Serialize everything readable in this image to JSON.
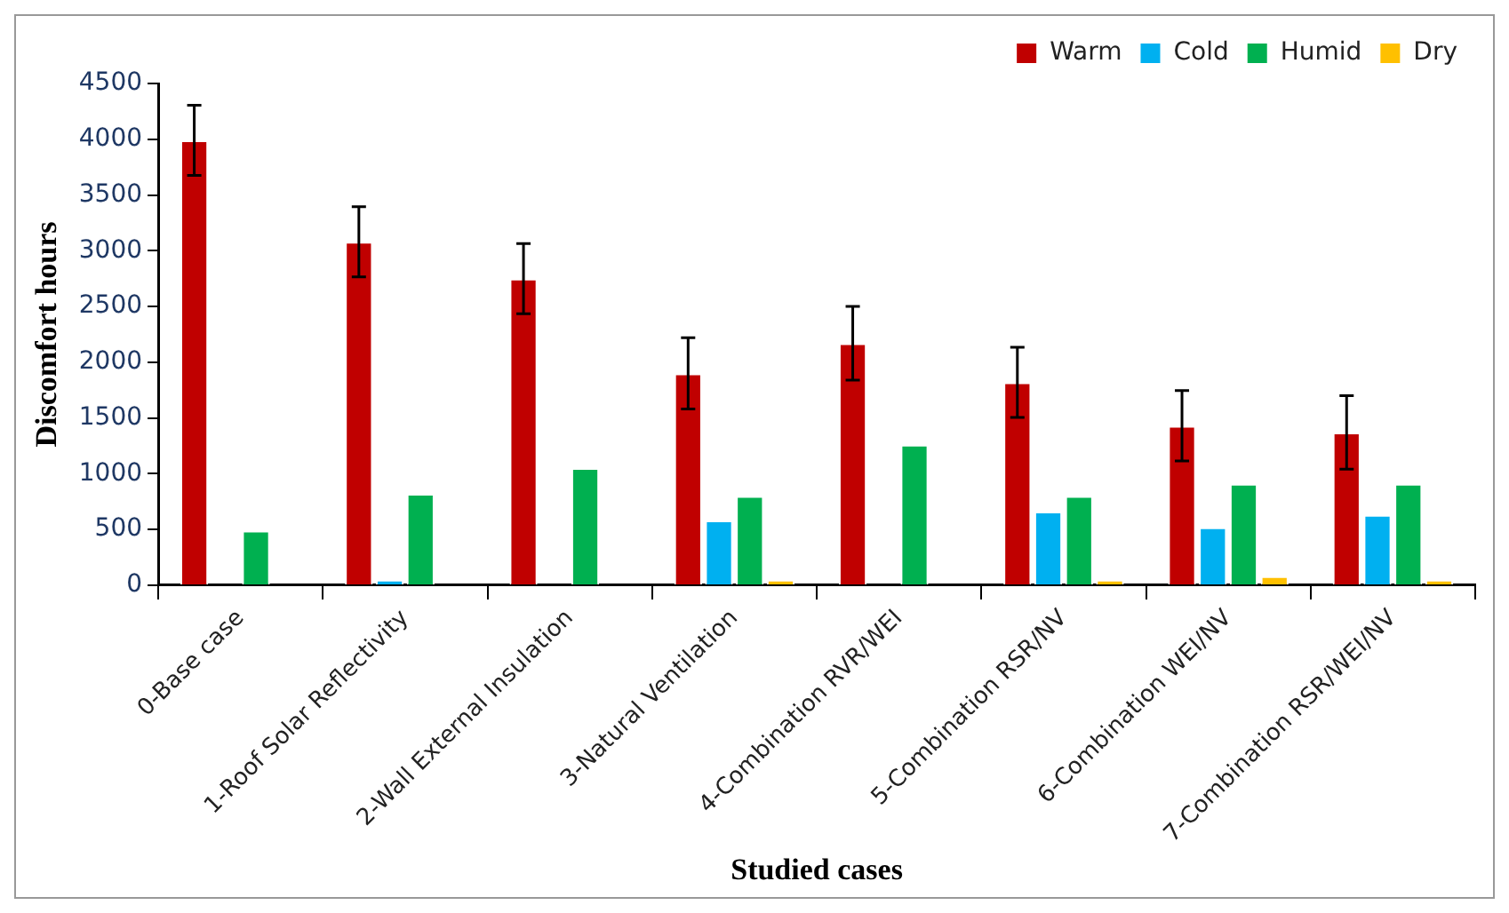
{
  "chart_data": {
    "type": "bar",
    "xlabel": "Studied cases",
    "ylabel": "Discomfort hours",
    "categories": [
      "0-Base case",
      "1-Roof Solar Reflectivity",
      "2-Wall External Insulation",
      "3-Natural Ventilation",
      "4-Combination RVR/WEI",
      "5-Combination RSR/NV",
      "6-Combination WEI/NV",
      "7-Combination RSR/WEI/NV"
    ],
    "series": [
      {
        "name": "Warm",
        "color": "#c00000",
        "values": [
          3990,
          3080,
          2750,
          1900,
          2170,
          1820,
          1430,
          1370
        ],
        "errors": [
          315,
          315,
          315,
          320,
          330,
          315,
          315,
          330
        ]
      },
      {
        "name": "Cold",
        "color": "#00b0f0",
        "values": [
          null,
          50,
          null,
          580,
          null,
          660,
          520,
          630
        ]
      },
      {
        "name": "Humid",
        "color": "#00b050",
        "values": [
          490,
          820,
          1050,
          800,
          1260,
          800,
          910,
          910
        ]
      },
      {
        "name": "Dry",
        "color": "#ffc000",
        "values": [
          null,
          null,
          null,
          50,
          null,
          50,
          80,
          50
        ]
      }
    ],
    "ylim": [
      0,
      4500
    ],
    "yticks": [
      0,
      500,
      1000,
      1500,
      2000,
      2500,
      3000,
      3500,
      4000,
      4500
    ],
    "grid": false,
    "legend": "top right"
  }
}
